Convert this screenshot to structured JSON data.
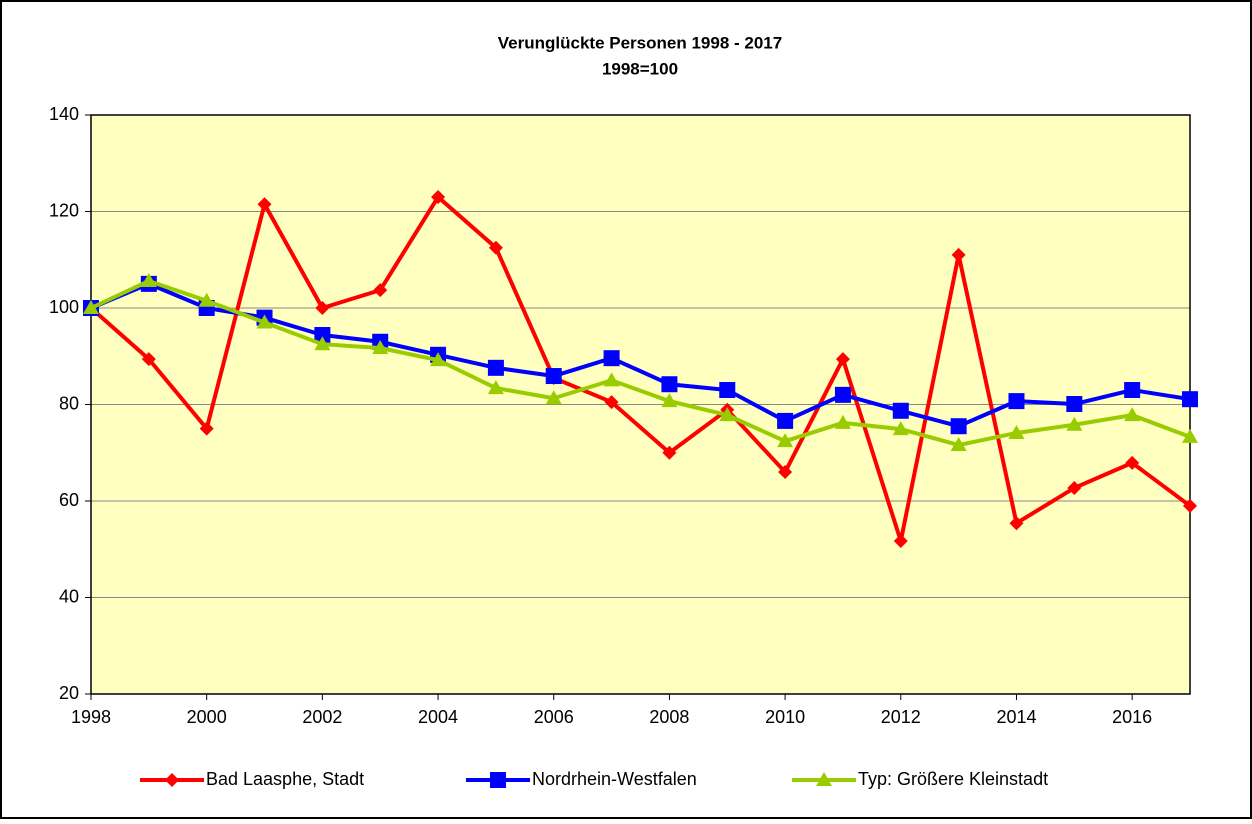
{
  "chart_data": {
    "type": "line",
    "title": "Verunglückte Personen 1998 - 2017",
    "subtitle": "1998=100",
    "x": [
      1998,
      1999,
      2000,
      2001,
      2002,
      2003,
      2004,
      2005,
      2006,
      2007,
      2008,
      2009,
      2010,
      2011,
      2012,
      2013,
      2014,
      2015,
      2016,
      2017
    ],
    "series": [
      {
        "name": "Bad Laasphe, Stadt",
        "color": "#ff0000",
        "marker": "diamond",
        "values": [
          100,
          89.4,
          75,
          121.5,
          100,
          103.7,
          123,
          112.5,
          85.5,
          80.5,
          70,
          78.9,
          66,
          89.4,
          51.7,
          111,
          55.4,
          62.7,
          67.9,
          59
        ]
      },
      {
        "name": "Nordrhein-Westfalen",
        "color": "#0000ff",
        "marker": "square",
        "values": [
          100,
          105,
          100,
          98,
          94.4,
          93,
          90.3,
          87.6,
          85.9,
          89.6,
          84.2,
          83,
          76.6,
          82,
          78.7,
          75.5,
          80.7,
          80.1,
          83,
          81.1
        ]
      },
      {
        "name": "Typ: Größere Kleinstadt",
        "color": "#99cc00",
        "marker": "triangle",
        "values": [
          100,
          105.6,
          101.5,
          97,
          92.5,
          91.7,
          89.2,
          83.4,
          81.3,
          85,
          80.7,
          77.8,
          72.4,
          76.2,
          74.9,
          71.6,
          74.1,
          75.8,
          77.8,
          73.3
        ]
      }
    ],
    "xlim": [
      1998,
      2017
    ],
    "xticks": [
      1998,
      2000,
      2002,
      2004,
      2006,
      2008,
      2010,
      2012,
      2014,
      2016
    ],
    "ylim": [
      20,
      140
    ],
    "yticks": [
      20,
      40,
      60,
      80,
      100,
      120,
      140
    ],
    "grid": true,
    "legend": "bottom",
    "plot_background": "#ffffc0"
  }
}
